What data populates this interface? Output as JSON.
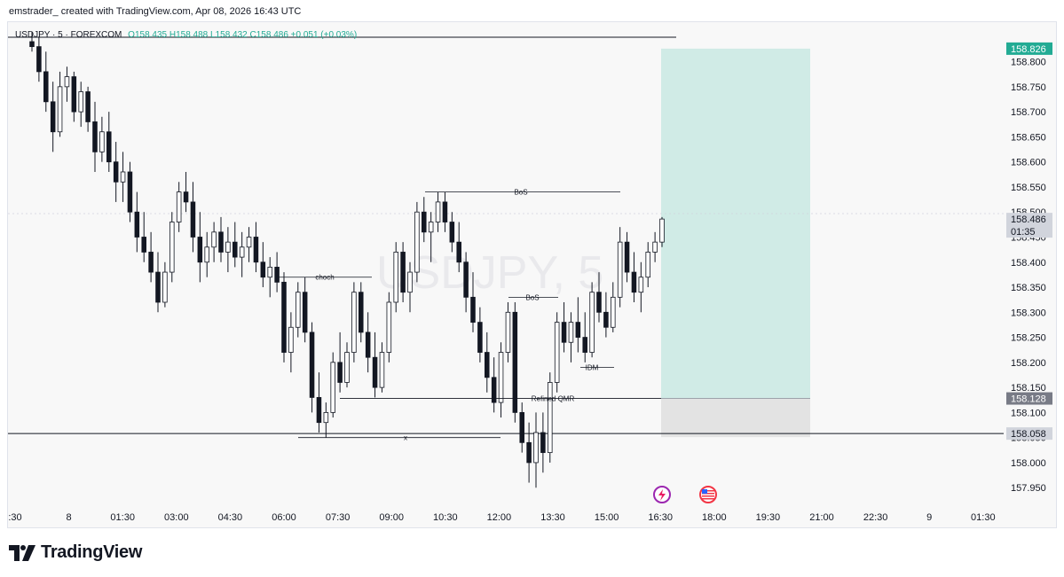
{
  "caption": "emstrader_ created with TradingView.com, Apr 08, 2026 16:43 UTC",
  "symbol_line": {
    "symbol": "USDJPY · 5 · FOREXCOM",
    "ohlc": "O158.435  H158.488  L158.432  C158.486  +0.051 (+0.03%)"
  },
  "watermark": "USDJPY, 5",
  "footer": {
    "brand": "TradingView",
    "logo_icon": "tradingview-logo-icon"
  },
  "colors": {
    "up_candle": "#ffffff",
    "down_candle": "#131722",
    "target_zone": "#d0ebe6",
    "stop_zone": "#e3e3e3",
    "target_badge": "#22ab94",
    "label_badge_dark": "#787b86",
    "label_badge_light": "#d1d4dc"
  },
  "price_axis": {
    "ticks": [
      "158.800",
      "158.750",
      "158.700",
      "158.650",
      "158.600",
      "158.550",
      "158.500",
      "158.450",
      "158.400",
      "158.350",
      "158.300",
      "158.250",
      "158.200",
      "158.150",
      "158.100",
      "158.050",
      "158.000",
      "157.950"
    ],
    "labels": {
      "target": "158.826",
      "current": "158.486",
      "countdown": "01:35",
      "entry": "158.128",
      "stop": "158.058"
    }
  },
  "time_axis": {
    "ticks": [
      ":30",
      "8",
      "01:30",
      "03:00",
      "04:30",
      "06:00",
      "07:30",
      "09:00",
      "10:30",
      "12:00",
      "13:30",
      "15:00",
      "16:30",
      "18:00",
      "19:30",
      "21:00",
      "22:30",
      "9",
      "01:30"
    ]
  },
  "annotations": {
    "bos_top": "BoS",
    "bos_mid": "BoS",
    "choch": "choch",
    "idm": "IDM",
    "refined_qmr": "Refined QMR",
    "x_mark": "x"
  },
  "event_icons": [
    "lightning-event-icon",
    "us-flag-event-icon"
  ],
  "chart_data": {
    "type": "candlestick",
    "symbol": "USDJPY",
    "interval": "5",
    "ylim": [
      157.915,
      158.87
    ],
    "trade_setup": {
      "target": 158.826,
      "entry": 158.128,
      "stop": 158.058
    },
    "candles": [
      [
        158.84,
        158.86,
        158.82,
        158.83
      ],
      [
        158.83,
        158.85,
        158.76,
        158.78
      ],
      [
        158.78,
        158.82,
        158.7,
        158.72
      ],
      [
        158.72,
        158.76,
        158.62,
        158.66
      ],
      [
        158.66,
        158.78,
        158.65,
        158.75
      ],
      [
        158.75,
        158.79,
        158.72,
        158.77
      ],
      [
        158.77,
        158.78,
        158.68,
        158.7
      ],
      [
        158.7,
        158.76,
        158.67,
        158.74
      ],
      [
        158.74,
        158.75,
        158.66,
        158.68
      ],
      [
        158.68,
        158.72,
        158.58,
        158.62
      ],
      [
        158.62,
        158.69,
        158.6,
        158.66
      ],
      [
        158.66,
        158.7,
        158.58,
        158.6
      ],
      [
        158.6,
        158.64,
        158.52,
        158.56
      ],
      [
        158.56,
        158.62,
        158.52,
        158.58
      ],
      [
        158.58,
        158.6,
        158.48,
        158.5
      ],
      [
        158.5,
        158.54,
        158.42,
        158.45
      ],
      [
        158.45,
        158.5,
        158.4,
        158.42
      ],
      [
        158.42,
        158.46,
        158.36,
        158.38
      ],
      [
        158.38,
        158.42,
        158.3,
        158.32
      ],
      [
        158.32,
        158.4,
        158.31,
        158.38
      ],
      [
        158.38,
        158.5,
        158.36,
        158.48
      ],
      [
        158.48,
        158.56,
        158.46,
        158.54
      ],
      [
        158.54,
        158.58,
        158.5,
        158.52
      ],
      [
        158.52,
        158.56,
        158.42,
        158.45
      ],
      [
        158.45,
        158.5,
        158.36,
        158.4
      ],
      [
        158.4,
        158.46,
        158.37,
        158.43
      ],
      [
        158.43,
        158.48,
        158.4,
        158.46
      ],
      [
        158.46,
        158.49,
        158.4,
        158.42
      ],
      [
        158.42,
        158.47,
        158.38,
        158.44
      ],
      [
        158.44,
        158.48,
        158.39,
        158.41
      ],
      [
        158.41,
        158.46,
        158.37,
        158.43
      ],
      [
        158.43,
        158.47,
        158.4,
        158.45
      ],
      [
        158.45,
        158.48,
        158.38,
        158.4
      ],
      [
        158.4,
        158.44,
        158.35,
        158.37
      ],
      [
        158.37,
        158.41,
        158.33,
        158.39
      ],
      [
        158.39,
        158.42,
        158.34,
        158.36
      ],
      [
        158.36,
        158.38,
        158.2,
        158.22
      ],
      [
        158.22,
        158.3,
        158.18,
        158.27
      ],
      [
        158.27,
        158.36,
        158.25,
        158.34
      ],
      [
        158.34,
        158.37,
        158.24,
        158.26
      ],
      [
        158.26,
        158.28,
        158.1,
        158.13
      ],
      [
        158.13,
        158.18,
        158.06,
        158.08
      ],
      [
        158.08,
        158.12,
        158.05,
        158.1
      ],
      [
        158.1,
        158.22,
        158.09,
        158.2
      ],
      [
        158.2,
        158.26,
        158.14,
        158.16
      ],
      [
        158.16,
        158.24,
        158.15,
        158.22
      ],
      [
        158.22,
        158.36,
        158.2,
        158.34
      ],
      [
        158.34,
        158.36,
        158.24,
        158.26
      ],
      [
        158.26,
        158.3,
        158.18,
        158.21
      ],
      [
        158.21,
        158.26,
        158.13,
        158.15
      ],
      [
        158.15,
        158.24,
        158.14,
        158.22
      ],
      [
        158.22,
        158.34,
        158.2,
        158.32
      ],
      [
        158.32,
        158.44,
        158.3,
        158.42
      ],
      [
        158.42,
        158.44,
        158.32,
        158.34
      ],
      [
        158.34,
        158.4,
        158.3,
        158.38
      ],
      [
        158.38,
        158.52,
        158.36,
        158.5
      ],
      [
        158.5,
        158.53,
        158.44,
        158.46
      ],
      [
        158.46,
        158.5,
        158.4,
        158.48
      ],
      [
        158.48,
        158.54,
        158.46,
        158.52
      ],
      [
        158.52,
        158.54,
        158.46,
        158.48
      ],
      [
        158.48,
        158.5,
        158.42,
        158.44
      ],
      [
        158.44,
        158.48,
        158.38,
        158.4
      ],
      [
        158.4,
        158.42,
        158.3,
        158.33
      ],
      [
        158.33,
        158.38,
        158.26,
        158.28
      ],
      [
        158.28,
        158.31,
        158.2,
        158.22
      ],
      [
        158.22,
        158.26,
        158.14,
        158.17
      ],
      [
        158.17,
        158.21,
        158.1,
        158.12
      ],
      [
        158.12,
        158.24,
        158.09,
        158.22
      ],
      [
        158.22,
        158.32,
        158.2,
        158.3
      ],
      [
        158.3,
        158.32,
        158.08,
        158.1
      ],
      [
        158.1,
        158.12,
        158.02,
        158.04
      ],
      [
        158.04,
        158.08,
        157.96,
        158.0
      ],
      [
        158.0,
        158.1,
        157.95,
        158.06
      ],
      [
        158.06,
        158.1,
        157.98,
        158.02
      ],
      [
        158.02,
        158.18,
        158.0,
        158.16
      ],
      [
        158.16,
        158.3,
        158.14,
        158.28
      ],
      [
        158.28,
        158.32,
        158.22,
        158.24
      ],
      [
        158.24,
        158.3,
        158.2,
        158.28
      ],
      [
        158.28,
        158.33,
        158.22,
        158.25
      ],
      [
        158.25,
        158.3,
        158.2,
        158.22
      ],
      [
        158.22,
        158.36,
        158.21,
        158.34
      ],
      [
        158.34,
        158.38,
        158.28,
        158.3
      ],
      [
        158.3,
        158.34,
        158.25,
        158.27
      ],
      [
        158.27,
        158.36,
        158.26,
        158.33
      ],
      [
        158.33,
        158.47,
        158.31,
        158.44
      ],
      [
        158.44,
        158.46,
        158.36,
        158.38
      ],
      [
        158.38,
        158.42,
        158.32,
        158.34
      ],
      [
        158.34,
        158.4,
        158.3,
        158.37
      ],
      [
        158.37,
        158.44,
        158.35,
        158.42
      ],
      [
        158.42,
        158.46,
        158.4,
        158.44
      ],
      [
        158.44,
        158.49,
        158.43,
        158.486
      ]
    ]
  }
}
